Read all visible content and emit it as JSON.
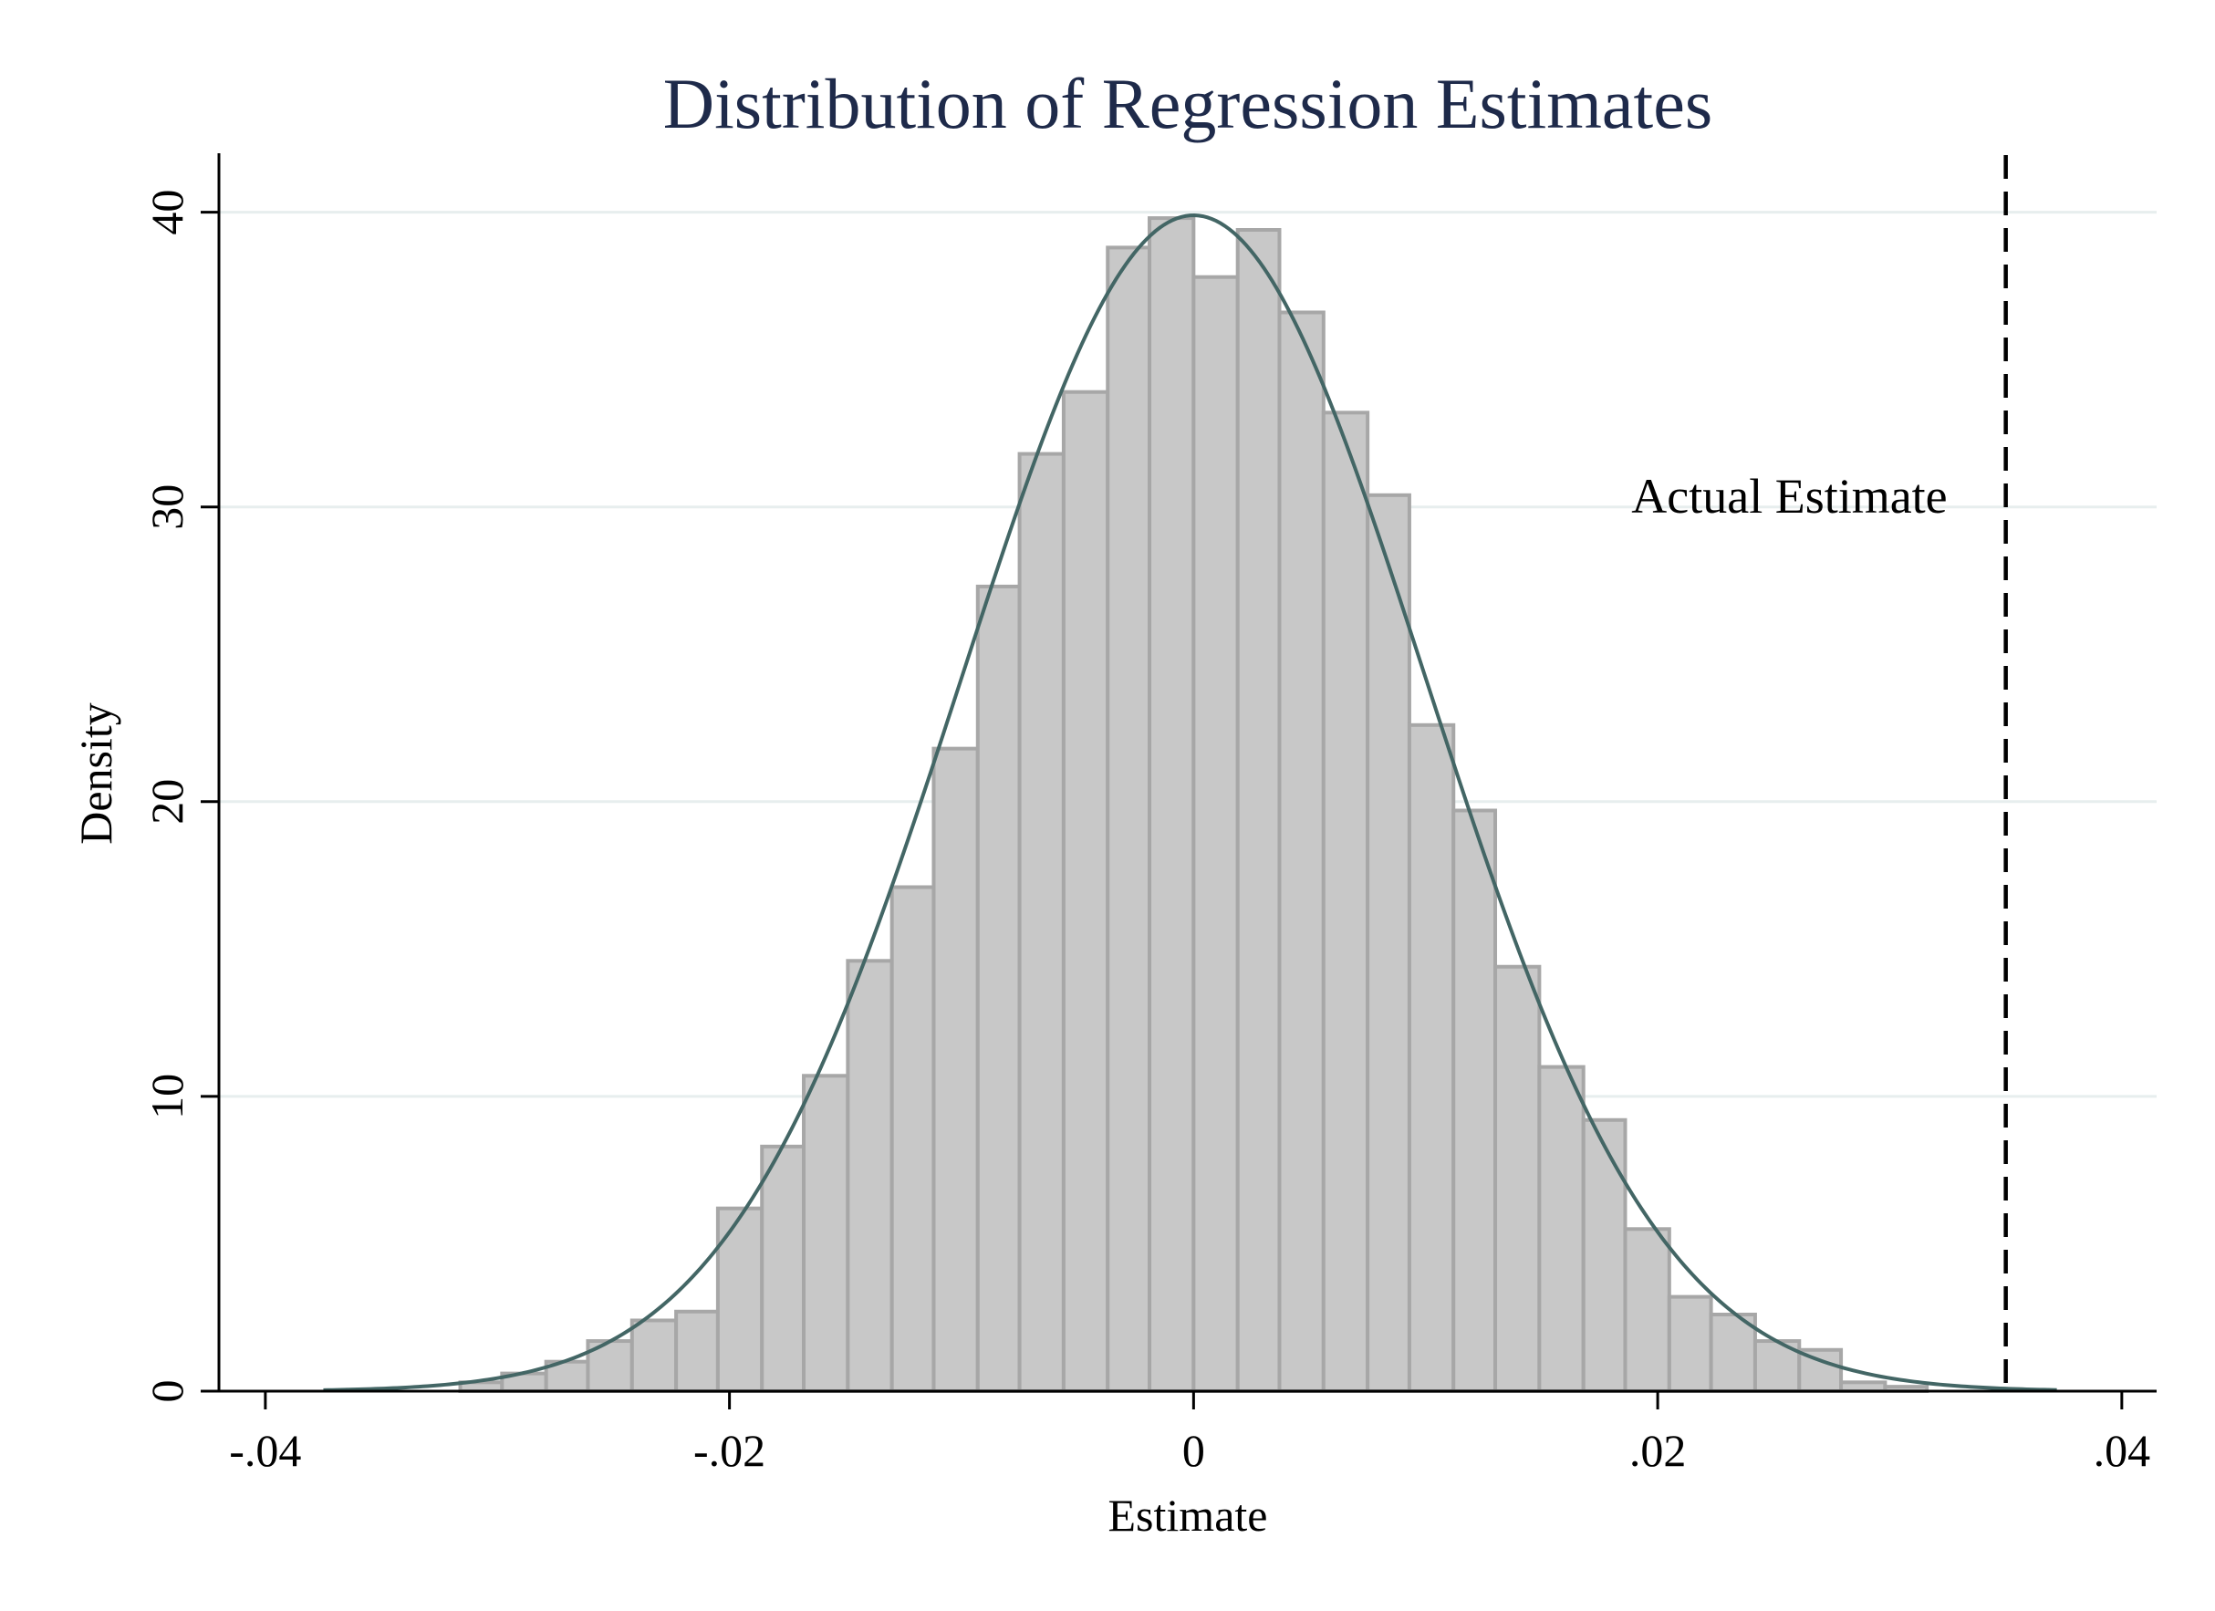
{
  "chart_data": {
    "type": "bar",
    "title": "Distribution of Regression Estimates",
    "xlabel": "Estimate",
    "ylabel": "Density",
    "xlim": [
      -0.042,
      0.0415
    ],
    "ylim": [
      0,
      42
    ],
    "x_ticks": [
      -0.04,
      -0.02,
      0,
      0.02,
      0.04
    ],
    "x_tick_labels": [
      "-.04",
      "-.02",
      "0",
      ".02",
      ".04"
    ],
    "y_ticks": [
      0,
      10,
      20,
      30,
      40
    ],
    "y_tick_labels": [
      "0",
      "10",
      "20",
      "30",
      "40"
    ],
    "grid": true,
    "bin_width": 0.00186,
    "bins": [
      {
        "x0": -0.0316,
        "x1": -0.0298,
        "density": 0.3
      },
      {
        "x0": -0.0298,
        "x1": -0.0279,
        "density": 0.6
      },
      {
        "x0": -0.0279,
        "x1": -0.0261,
        "density": 1.0
      },
      {
        "x0": -0.0261,
        "x1": -0.0242,
        "density": 1.7
      },
      {
        "x0": -0.0242,
        "x1": -0.0223,
        "density": 2.4
      },
      {
        "x0": -0.0223,
        "x1": -0.0205,
        "density": 2.7
      },
      {
        "x0": -0.0205,
        "x1": -0.0186,
        "density": 6.2
      },
      {
        "x0": -0.0186,
        "x1": -0.0168,
        "density": 8.3
      },
      {
        "x0": -0.0168,
        "x1": -0.0149,
        "density": 10.7
      },
      {
        "x0": -0.0149,
        "x1": -0.013,
        "density": 14.6
      },
      {
        "x0": -0.013,
        "x1": -0.0112,
        "density": 17.1
      },
      {
        "x0": -0.0112,
        "x1": -0.0093,
        "density": 21.8
      },
      {
        "x0": -0.0093,
        "x1": -0.0075,
        "density": 27.3
      },
      {
        "x0": -0.0075,
        "x1": -0.0056,
        "density": 31.8
      },
      {
        "x0": -0.0056,
        "x1": -0.0037,
        "density": 33.9
      },
      {
        "x0": -0.0037,
        "x1": -0.0019,
        "density": 38.8
      },
      {
        "x0": -0.0019,
        "x1": 0.0,
        "density": 39.8
      },
      {
        "x0": 0.0,
        "x1": 0.0019,
        "density": 37.8
      },
      {
        "x0": 0.0019,
        "x1": 0.0037,
        "density": 39.4
      },
      {
        "x0": 0.0037,
        "x1": 0.0056,
        "density": 36.6
      },
      {
        "x0": 0.0056,
        "x1": 0.0075,
        "density": 33.2
      },
      {
        "x0": 0.0075,
        "x1": 0.0093,
        "density": 30.4
      },
      {
        "x0": 0.0093,
        "x1": 0.0112,
        "density": 22.6
      },
      {
        "x0": 0.0112,
        "x1": 0.013,
        "density": 19.7
      },
      {
        "x0": 0.013,
        "x1": 0.0149,
        "density": 14.4
      },
      {
        "x0": 0.0149,
        "x1": 0.0168,
        "density": 11.0
      },
      {
        "x0": 0.0168,
        "x1": 0.0186,
        "density": 9.2
      },
      {
        "x0": 0.0186,
        "x1": 0.0205,
        "density": 5.5
      },
      {
        "x0": 0.0205,
        "x1": 0.0223,
        "density": 3.2
      },
      {
        "x0": 0.0223,
        "x1": 0.0242,
        "density": 2.6
      },
      {
        "x0": 0.0242,
        "x1": 0.0261,
        "density": 1.7
      },
      {
        "x0": 0.0261,
        "x1": 0.0279,
        "density": 1.4
      },
      {
        "x0": 0.0279,
        "x1": 0.0298,
        "density": 0.3
      },
      {
        "x0": 0.0298,
        "x1": 0.0316,
        "density": 0.15
      }
    ],
    "normal_curve": {
      "mean": 0.0,
      "sd": 0.01,
      "x_range": [
        -0.0375,
        0.0372
      ]
    },
    "reference_line": {
      "x": 0.035,
      "label": "Actual Estimate",
      "style": "dashed"
    },
    "colors": {
      "bar_fill": "#c8c8c8",
      "bar_stroke": "#a7a7a7",
      "curve": "#436665",
      "grid": "#e7eeee",
      "title": "#1e2a4a",
      "axis": "#000000"
    }
  }
}
